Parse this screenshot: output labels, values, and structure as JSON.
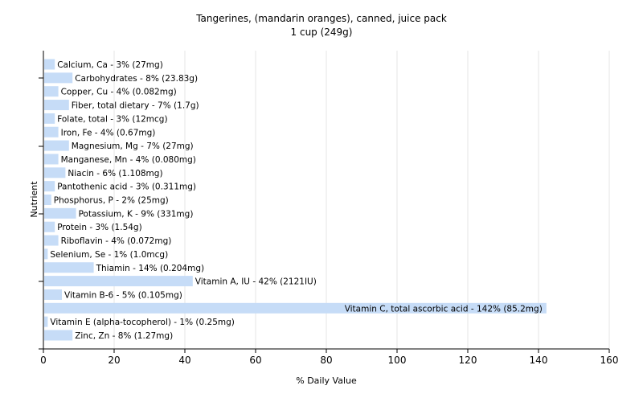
{
  "chart_data": {
    "type": "bar",
    "orientation": "horizontal",
    "title": "Tangerines, (mandarin oranges), canned, juice pack",
    "subtitle": "1 cup (249g)",
    "xlabel": "% Daily Value",
    "ylabel": "Nutrient",
    "xlim": [
      0,
      160
    ],
    "xticks": [
      0,
      20,
      40,
      60,
      80,
      100,
      120,
      140,
      160
    ],
    "grid": "vertical",
    "bar_color": "#c6dcf7",
    "categories": [
      "Calcium, Ca - 3% (27mg)",
      "Carbohydrates - 8% (23.83g)",
      "Copper, Cu - 4% (0.082mg)",
      "Fiber, total dietary - 7% (1.7g)",
      "Folate, total - 3% (12mcg)",
      "Iron, Fe - 4% (0.67mg)",
      "Magnesium, Mg - 7% (27mg)",
      "Manganese, Mn - 4% (0.080mg)",
      "Niacin - 6% (1.108mg)",
      "Pantothenic acid - 3% (0.311mg)",
      "Phosphorus, P - 2% (25mg)",
      "Potassium, K - 9% (331mg)",
      "Protein - 3% (1.54g)",
      "Riboflavin - 4% (0.072mg)",
      "Selenium, Se - 1% (1.0mcg)",
      "Thiamin - 14% (0.204mg)",
      "Vitamin A, IU - 42% (2121IU)",
      "Vitamin B-6 - 5% (0.105mg)",
      "Vitamin C, total ascorbic acid - 142% (85.2mg)",
      "Vitamin E (alpha-tocopherol) - 1% (0.25mg)",
      "Zinc, Zn - 8% (1.27mg)"
    ],
    "values": [
      3,
      8,
      4,
      7,
      3,
      4,
      7,
      4,
      6,
      3,
      2,
      9,
      3,
      4,
      1,
      14,
      42,
      5,
      142,
      1,
      8
    ]
  }
}
